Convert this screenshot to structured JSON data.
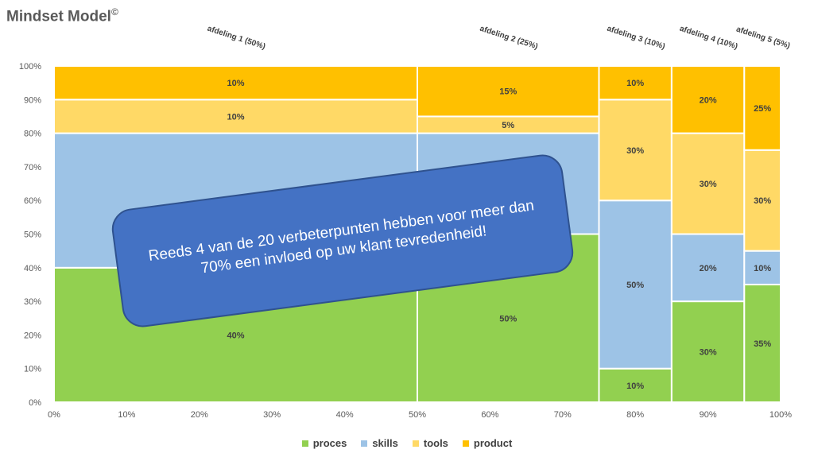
{
  "title": "Mindset Model",
  "title_mark": "©",
  "callout_text": "Reeds 4 van de 20 verbeterpunten hebben voor meer dan 70% een invloed op uw klant tevredenheid!",
  "chart_data": {
    "type": "mekko",
    "xlim": [
      0,
      100
    ],
    "ylim": [
      0,
      100
    ],
    "x_ticks": [
      "0%",
      "10%",
      "20%",
      "30%",
      "40%",
      "50%",
      "60%",
      "70%",
      "80%",
      "90%",
      "100%"
    ],
    "y_ticks": [
      "0%",
      "10%",
      "20%",
      "30%",
      "40%",
      "50%",
      "60%",
      "70%",
      "80%",
      "90%",
      "100%"
    ],
    "series_names": [
      "proces",
      "skills",
      "tools",
      "product"
    ],
    "colors": {
      "proces": "#92d050",
      "skills": "#9dc3e6",
      "tools": "#ffd966",
      "product": "#ffc000"
    },
    "columns": [
      {
        "label": "afdeling 1 (50%)",
        "width": 50,
        "values": [
          40,
          40,
          10,
          10
        ]
      },
      {
        "label": "afdeling 2 (25%)",
        "width": 25,
        "values": [
          50,
          30,
          5,
          15
        ]
      },
      {
        "label": "afdeling 3 (10%)",
        "width": 10,
        "values": [
          10,
          50,
          30,
          10
        ]
      },
      {
        "label": "afdeling 4 (10%)",
        "width": 10,
        "values": [
          30,
          20,
          30,
          20
        ]
      },
      {
        "label": "afdeling 5 (5%)",
        "width": 5,
        "values": [
          35,
          10,
          30,
          25
        ]
      }
    ],
    "legend_position": "bottom"
  }
}
